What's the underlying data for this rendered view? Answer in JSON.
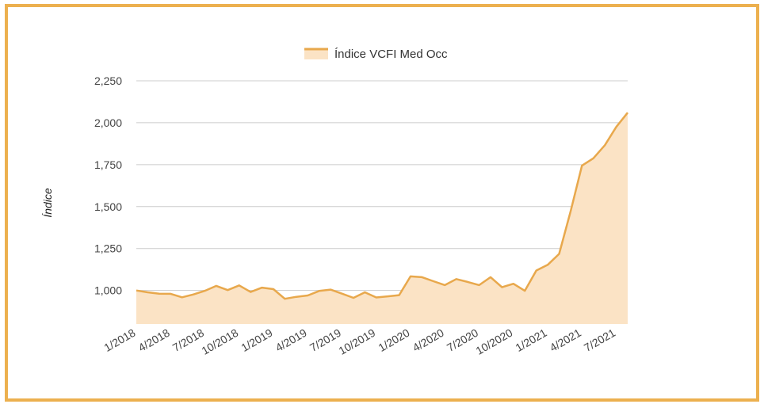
{
  "colors": {
    "line": "#e8a84c",
    "fill": "#fbe3c5",
    "grid": "#cccccc",
    "frame": "#ecb04f"
  },
  "chart_data": {
    "type": "area",
    "title": "",
    "legend": {
      "label": "Índice VCFI Med Occ",
      "position": "top"
    },
    "ylabel": "Índice",
    "xlabel": "",
    "ylim": [
      800,
      2250
    ],
    "yticks": [
      1000,
      1250,
      1500,
      1750,
      2000,
      2250
    ],
    "ytick_labels": [
      "1,000",
      "1,250",
      "1,500",
      "1,750",
      "2,000",
      "2,250"
    ],
    "xtick_labels": [
      "1/2018",
      "4/2018",
      "7/2018",
      "10/2018",
      "1/2019",
      "4/2019",
      "7/2019",
      "10/2019",
      "1/2020",
      "4/2020",
      "7/2020",
      "10/2020",
      "1/2021",
      "4/2021",
      "7/2021"
    ],
    "grid": true,
    "series": [
      {
        "name": "Índice VCFI Med Occ",
        "start": "1/2018",
        "frequency": "monthly",
        "values": [
          1000,
          989,
          981,
          980,
          959,
          976,
          998,
          1027,
          1002,
          1030,
          991,
          1017,
          1008,
          950,
          962,
          970,
          997,
          1005,
          981,
          956,
          989,
          958,
          965,
          972,
          1084,
          1079,
          1055,
          1032,
          1068,
          1051,
          1032,
          1079,
          1019,
          1040,
          998,
          1119,
          1153,
          1218,
          1470,
          1744,
          1788,
          1866,
          1975,
          2060
        ]
      }
    ]
  }
}
